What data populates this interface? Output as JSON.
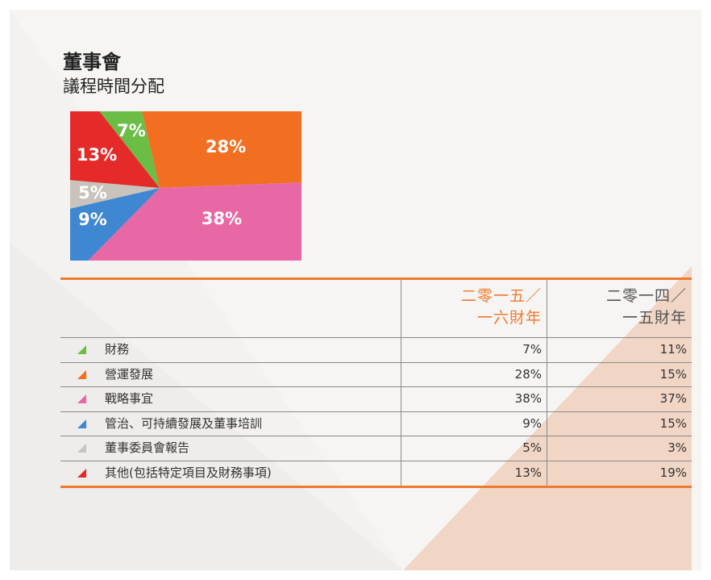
{
  "header": {
    "title": "董事會",
    "subtitle": "議程時間分配"
  },
  "chart_data": {
    "type": "pie",
    "values": [
      7,
      28,
      38,
      9,
      5,
      13
    ],
    "value_labels": [
      "7%",
      "28%",
      "38%",
      "9%",
      "5%",
      "13%"
    ],
    "colors": [
      "#6cbd45",
      "#f26f21",
      "#e868a6",
      "#3f87d0",
      "#c8c3bc",
      "#e52b2a"
    ]
  },
  "table": {
    "columns": [
      [
        "二零一五／",
        "一六財年"
      ],
      [
        "二零一四／",
        "一五財年"
      ]
    ],
    "rows": [
      [
        "財務",
        "7%",
        "11%"
      ],
      [
        "營運發展",
        "28%",
        "15%"
      ],
      [
        "戰略事宜",
        "38%",
        "37%"
      ],
      [
        "管治、可持續發展及董事培訓",
        "9%",
        "15%"
      ],
      [
        "董事委員會報告",
        "5%",
        "3%"
      ],
      [
        "其他(包括特定項目及財務事項)",
        "13%",
        "19%"
      ]
    ]
  }
}
